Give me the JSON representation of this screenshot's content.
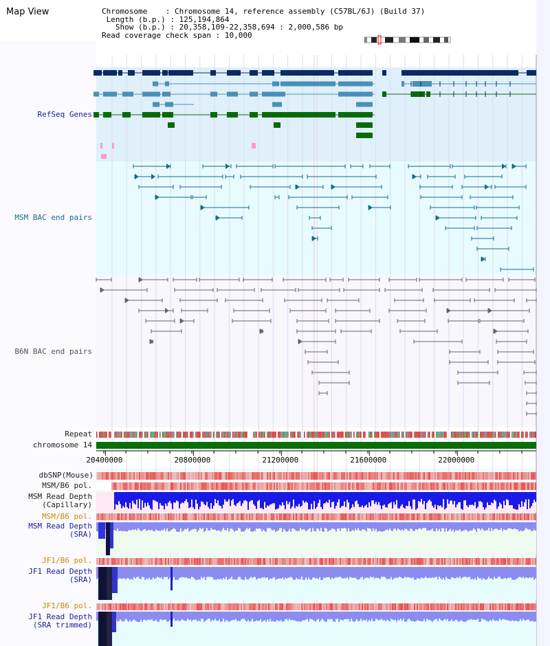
{
  "view_title": "Map View",
  "header": {
    "chromosome_key": "Chromosome",
    "chromosome_val": "Chromosome 14, reference assembly (C57BL/6J) (Build 37)",
    "length_key": "Length (b.p.)",
    "length_val": "125,194,864",
    "show_key": "Show (b.p.)",
    "show_val": "20,358,109-22,358,694 : 2,000,586 bp",
    "span_key": "Read coverage check span",
    "span_val": "10,000"
  },
  "tracks": {
    "refseq": "RefSeq Genes",
    "msm_bac": "MSM BAC end pairs",
    "b6n_bac": "B6N BAC end pairs",
    "repeat": "Repeat",
    "chromosome": "chromosome 14",
    "dbsnp": "dbSNP(Mouse)",
    "msm_b6_pol_1": "MSM/B6 pol.",
    "msm_depth_cap_1": "MSM Read Depth",
    "msm_depth_cap_2": "(Capillary)",
    "msm_b6_pol_2": "MSM/B6 pol.",
    "msm_depth_sra_1": "MSM Read Depth",
    "msm_depth_sra_2": "(SRA)",
    "jf1_pol_1": "JF1/B6 pol.",
    "jf1_depth_1": "JF1 Read Depth",
    "jf1_depth_2": "(SRA)",
    "jf1_pol_2": "JF1/B6 pol.",
    "jf1_trim_1": "JF1 Read Depth",
    "jf1_trim_2": "(SRA trimmed)"
  },
  "axis": {
    "ticks": [
      "20400000",
      "20800000",
      "21200000",
      "21600000",
      "22000000"
    ],
    "tick_values": [
      20400000,
      20800000,
      21200000,
      21600000,
      22000000
    ],
    "range": [
      20358109,
      22358694
    ]
  },
  "colors": {
    "refseq_dark": "#0a2a66",
    "refseq_light": "#4a90b8",
    "refseq_green": "#0a6a0a",
    "refseq_pink": "#ff99cc",
    "msm_bac": "#1a6a8a",
    "b6n_bac": "#666666",
    "chromosome_bar": "#0a6e0a",
    "depth_blue": "#1a1ae6",
    "depth_light": "#8c8cf0",
    "pol_red": "#e63333"
  }
}
